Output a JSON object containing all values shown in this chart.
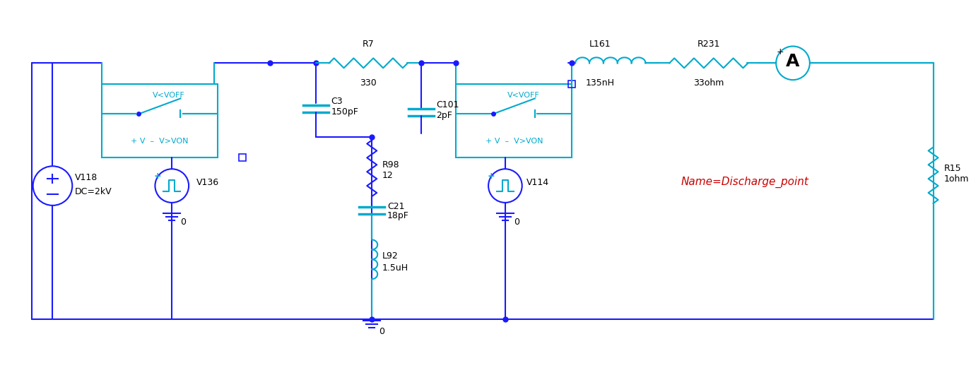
{
  "bg_color": "#ffffff",
  "wire_color_blue": "#1a1aff",
  "wire_color_cyan": "#00aacc",
  "component_color_cyan": "#00aacc",
  "component_color_blue": "#1a1aff",
  "text_color_black": "#000000",
  "text_color_red": "#cc0000",
  "text_color_cyan": "#00aacc",
  "title": "",
  "components": {
    "V118": {
      "label": "V118",
      "sublabel": "DC=2kV"
    },
    "V136": {
      "label": "V136"
    },
    "V114": {
      "label": "V114"
    },
    "R7": {
      "label": "R7",
      "value": "330"
    },
    "R98": {
      "label": "R98",
      "value": "12"
    },
    "R231": {
      "label": "R231",
      "value": "33ohm"
    },
    "R15": {
      "label": "R15",
      "value": "1ohm"
    },
    "C3": {
      "label": "C3",
      "value": "150pF"
    },
    "C101": {
      "label": "C101",
      "value": "2pF"
    },
    "C21": {
      "label": "C21",
      "value": "18pF"
    },
    "L92": {
      "label": "L92",
      "value": "1.5uH"
    },
    "L161": {
      "label": "L161",
      "value": "135nH"
    },
    "ammeter": {
      "label": "A"
    },
    "discharge_point": {
      "label": "Name=Discharge_point"
    }
  },
  "switch1_label": "V<VOFF",
  "switch1_sublabel": "+ V  - V>VON",
  "switch2_label": "V<VOFF",
  "switch2_sublabel": "+ V  - V>VON"
}
